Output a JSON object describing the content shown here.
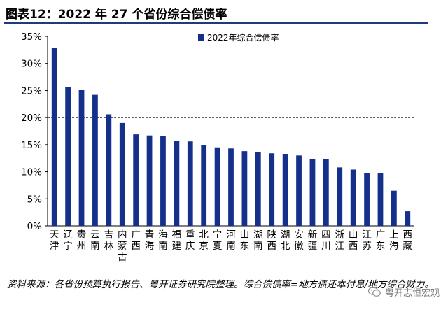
{
  "figure_title": "图表12：2022 年 27 个省份综合偿债率",
  "source_note": "资料来源：各省份预算执行报告、粤开证券研究院整理。综合偿债率=地方债还本付息/地方综合财力。",
  "watermark": {
    "text": "粤开志恒宏观",
    "icon": "wechat-icon"
  },
  "chart_data": {
    "type": "bar",
    "legend": "2022年综合偿债率",
    "legend_position": "top",
    "categories": [
      "天津",
      "辽宁",
      "贵州",
      "云南",
      "吉林",
      "内蒙古",
      "广西",
      "青海",
      "海南",
      "福建",
      "重庆",
      "北京",
      "宁夏",
      "河南",
      "山东",
      "湖南",
      "陕西",
      "湖北",
      "安徽",
      "新疆",
      "四川",
      "浙江",
      "山西",
      "江苏",
      "广东",
      "上海",
      "西藏"
    ],
    "values": [
      32.9,
      25.7,
      25.1,
      24.2,
      20.6,
      19.0,
      16.9,
      16.7,
      16.6,
      15.7,
      15.6,
      14.9,
      14.5,
      14.3,
      13.8,
      13.6,
      13.4,
      13.3,
      13.0,
      12.4,
      12.3,
      10.8,
      10.4,
      9.7,
      9.7,
      6.5,
      2.7
    ],
    "ylim": [
      0,
      35
    ],
    "yticks": [
      "0%",
      "5%",
      "10%",
      "15%",
      "20%",
      "25%",
      "30%",
      "35%"
    ],
    "reference_line": 20,
    "bar_color": "#15308a"
  }
}
